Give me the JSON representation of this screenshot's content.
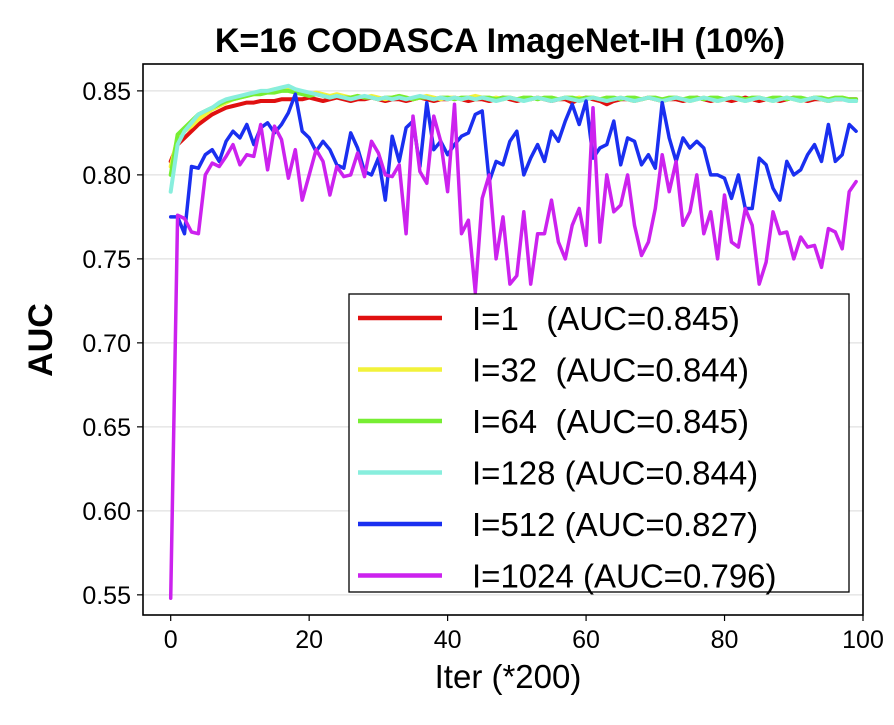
{
  "chart_data": {
    "type": "line",
    "title": "K=16 CODASCA ImageNet-IH (10%)",
    "xlabel": "Iter (*200)",
    "ylabel": "AUC",
    "xlim": [
      -4,
      100
    ],
    "ylim": [
      0.538,
      0.866
    ],
    "xticks": [
      0,
      20,
      40,
      60,
      80,
      100
    ],
    "yticks": [
      0.55,
      0.6,
      0.65,
      0.7,
      0.75,
      0.8,
      0.85
    ],
    "grid": "horizontal",
    "legend_position": "lower-right",
    "x": [
      0,
      1,
      2,
      3,
      4,
      5,
      6,
      7,
      8,
      9,
      10,
      11,
      12,
      13,
      14,
      15,
      16,
      17,
      18,
      19,
      20,
      21,
      22,
      23,
      24,
      25,
      26,
      27,
      28,
      29,
      30,
      31,
      32,
      33,
      34,
      35,
      36,
      37,
      38,
      39,
      40,
      41,
      42,
      43,
      44,
      45,
      46,
      47,
      48,
      49,
      50,
      51,
      52,
      53,
      54,
      55,
      56,
      57,
      58,
      59,
      60,
      61,
      62,
      63,
      64,
      65,
      66,
      67,
      68,
      69,
      70,
      71,
      72,
      73,
      74,
      75,
      76,
      77,
      78,
      79,
      80,
      81,
      82,
      83,
      84,
      85,
      86,
      87,
      88,
      89,
      90,
      91,
      92,
      93,
      94,
      95,
      96,
      97,
      98,
      99
    ],
    "series": [
      {
        "name": "I=1   (AUC=0.845)",
        "color": "#e01010",
        "values": [
          0.808,
          0.818,
          0.822,
          0.826,
          0.83,
          0.833,
          0.836,
          0.838,
          0.84,
          0.841,
          0.842,
          0.843,
          0.843,
          0.844,
          0.844,
          0.844,
          0.845,
          0.845,
          0.845,
          0.845,
          0.846,
          0.845,
          0.844,
          0.845,
          0.846,
          0.845,
          0.844,
          0.845,
          0.845,
          0.846,
          0.845,
          0.844,
          0.845,
          0.845,
          0.844,
          0.845,
          0.846,
          0.845,
          0.844,
          0.845,
          0.845,
          0.846,
          0.845,
          0.844,
          0.845,
          0.845,
          0.844,
          0.845,
          0.846,
          0.845,
          0.844,
          0.845,
          0.845,
          0.846,
          0.845,
          0.844,
          0.845,
          0.845,
          0.843,
          0.845,
          0.846,
          0.845,
          0.844,
          0.842,
          0.844,
          0.845,
          0.845,
          0.844,
          0.845,
          0.846,
          0.845,
          0.844,
          0.845,
          0.845,
          0.844,
          0.845,
          0.846,
          0.845,
          0.844,
          0.845,
          0.845,
          0.844,
          0.845,
          0.846,
          0.845,
          0.844,
          0.845,
          0.845,
          0.844,
          0.845,
          0.846,
          0.845,
          0.844,
          0.845,
          0.845,
          0.844,
          0.845,
          0.845,
          0.845,
          0.845
        ]
      },
      {
        "name": "I=32  (AUC=0.844)",
        "color": "#f2f23a",
        "values": [
          0.805,
          0.822,
          0.826,
          0.829,
          0.833,
          0.836,
          0.839,
          0.841,
          0.843,
          0.845,
          0.846,
          0.847,
          0.848,
          0.849,
          0.85,
          0.851,
          0.851,
          0.852,
          0.85,
          0.849,
          0.848,
          0.849,
          0.848,
          0.847,
          0.848,
          0.847,
          0.846,
          0.847,
          0.846,
          0.847,
          0.846,
          0.845,
          0.846,
          0.847,
          0.846,
          0.845,
          0.846,
          0.847,
          0.846,
          0.845,
          0.846,
          0.846,
          0.845,
          0.846,
          0.847,
          0.846,
          0.845,
          0.846,
          0.845,
          0.846,
          0.845,
          0.846,
          0.845,
          0.846,
          0.845,
          0.846,
          0.845,
          0.846,
          0.845,
          0.846,
          0.845,
          0.846,
          0.845,
          0.846,
          0.845,
          0.846,
          0.845,
          0.844,
          0.845,
          0.846,
          0.845,
          0.844,
          0.845,
          0.846,
          0.845,
          0.844,
          0.845,
          0.846,
          0.845,
          0.844,
          0.845,
          0.846,
          0.845,
          0.844,
          0.845,
          0.846,
          0.845,
          0.844,
          0.845,
          0.846,
          0.845,
          0.844,
          0.845,
          0.846,
          0.845,
          0.844,
          0.845,
          0.846,
          0.845,
          0.844
        ]
      },
      {
        "name": "I=64  (AUC=0.845)",
        "color": "#77ee33",
        "values": [
          0.8,
          0.824,
          0.828,
          0.832,
          0.836,
          0.838,
          0.84,
          0.842,
          0.844,
          0.845,
          0.846,
          0.847,
          0.848,
          0.848,
          0.849,
          0.849,
          0.85,
          0.85,
          0.849,
          0.848,
          0.847,
          0.848,
          0.847,
          0.846,
          0.847,
          0.846,
          0.846,
          0.847,
          0.846,
          0.846,
          0.845,
          0.846,
          0.846,
          0.847,
          0.846,
          0.845,
          0.846,
          0.846,
          0.845,
          0.846,
          0.846,
          0.845,
          0.846,
          0.846,
          0.845,
          0.846,
          0.846,
          0.845,
          0.846,
          0.846,
          0.845,
          0.846,
          0.846,
          0.845,
          0.846,
          0.846,
          0.845,
          0.846,
          0.846,
          0.845,
          0.846,
          0.846,
          0.845,
          0.846,
          0.846,
          0.845,
          0.846,
          0.846,
          0.845,
          0.846,
          0.846,
          0.845,
          0.846,
          0.846,
          0.845,
          0.846,
          0.846,
          0.845,
          0.846,
          0.846,
          0.845,
          0.846,
          0.846,
          0.845,
          0.846,
          0.846,
          0.845,
          0.846,
          0.846,
          0.845,
          0.846,
          0.846,
          0.845,
          0.846,
          0.846,
          0.845,
          0.846,
          0.846,
          0.845,
          0.845
        ]
      },
      {
        "name": "I=128 (AUC=0.844)",
        "color": "#88eedd",
        "values": [
          0.79,
          0.818,
          0.826,
          0.831,
          0.836,
          0.838,
          0.84,
          0.843,
          0.845,
          0.846,
          0.847,
          0.848,
          0.849,
          0.85,
          0.85,
          0.851,
          0.852,
          0.853,
          0.851,
          0.85,
          0.849,
          0.848,
          0.847,
          0.846,
          0.847,
          0.846,
          0.845,
          0.846,
          0.847,
          0.846,
          0.845,
          0.846,
          0.845,
          0.846,
          0.845,
          0.846,
          0.847,
          0.846,
          0.845,
          0.846,
          0.845,
          0.846,
          0.845,
          0.846,
          0.845,
          0.846,
          0.845,
          0.844,
          0.845,
          0.846,
          0.845,
          0.844,
          0.845,
          0.846,
          0.845,
          0.844,
          0.845,
          0.846,
          0.845,
          0.844,
          0.845,
          0.846,
          0.845,
          0.844,
          0.845,
          0.846,
          0.845,
          0.844,
          0.845,
          0.846,
          0.845,
          0.844,
          0.845,
          0.846,
          0.845,
          0.844,
          0.845,
          0.846,
          0.845,
          0.844,
          0.845,
          0.846,
          0.845,
          0.844,
          0.845,
          0.846,
          0.845,
          0.844,
          0.845,
          0.846,
          0.845,
          0.844,
          0.845,
          0.846,
          0.845,
          0.844,
          0.845,
          0.845,
          0.844,
          0.844
        ]
      },
      {
        "name": "I=512 (AUC=0.827)",
        "color": "#1a2ff0",
        "values": [
          0.775,
          0.775,
          0.765,
          0.805,
          0.804,
          0.812,
          0.815,
          0.808,
          0.82,
          0.826,
          0.822,
          0.83,
          0.818,
          0.828,
          0.831,
          0.825,
          0.83,
          0.837,
          0.848,
          0.826,
          0.822,
          0.814,
          0.82,
          0.815,
          0.806,
          0.804,
          0.825,
          0.816,
          0.802,
          0.8,
          0.81,
          0.785,
          0.823,
          0.808,
          0.828,
          0.832,
          0.805,
          0.843,
          0.815,
          0.82,
          0.812,
          0.818,
          0.823,
          0.825,
          0.836,
          0.838,
          0.796,
          0.808,
          0.806,
          0.82,
          0.826,
          0.8,
          0.81,
          0.818,
          0.808,
          0.826,
          0.82,
          0.832,
          0.842,
          0.83,
          0.844,
          0.81,
          0.816,
          0.818,
          0.832,
          0.806,
          0.822,
          0.82,
          0.806,
          0.812,
          0.804,
          0.843,
          0.822,
          0.808,
          0.822,
          0.816,
          0.82,
          0.816,
          0.8,
          0.8,
          0.798,
          0.786,
          0.8,
          0.78,
          0.78,
          0.81,
          0.806,
          0.792,
          0.785,
          0.808,
          0.8,
          0.803,
          0.812,
          0.818,
          0.808,
          0.83,
          0.808,
          0.812,
          0.83,
          0.826
        ]
      },
      {
        "name": "I=1024 (AUC=0.796)",
        "color": "#cc22ee",
        "values": [
          0.548,
          0.776,
          0.774,
          0.766,
          0.765,
          0.8,
          0.807,
          0.805,
          0.811,
          0.818,
          0.806,
          0.812,
          0.811,
          0.83,
          0.803,
          0.829,
          0.821,
          0.798,
          0.815,
          0.785,
          0.8,
          0.815,
          0.808,
          0.788,
          0.805,
          0.799,
          0.8,
          0.813,
          0.799,
          0.82,
          0.813,
          0.8,
          0.799,
          0.806,
          0.765,
          0.835,
          0.802,
          0.795,
          0.835,
          0.82,
          0.79,
          0.842,
          0.765,
          0.773,
          0.73,
          0.786,
          0.8,
          0.75,
          0.775,
          0.735,
          0.74,
          0.778,
          0.735,
          0.765,
          0.765,
          0.785,
          0.76,
          0.75,
          0.77,
          0.78,
          0.758,
          0.84,
          0.76,
          0.8,
          0.778,
          0.782,
          0.8,
          0.77,
          0.752,
          0.76,
          0.78,
          0.812,
          0.79,
          0.808,
          0.77,
          0.778,
          0.8,
          0.765,
          0.778,
          0.75,
          0.788,
          0.76,
          0.757,
          0.78,
          0.77,
          0.735,
          0.748,
          0.778,
          0.765,
          0.766,
          0.75,
          0.763,
          0.757,
          0.758,
          0.745,
          0.768,
          0.766,
          0.756,
          0.79,
          0.796
        ]
      }
    ]
  }
}
